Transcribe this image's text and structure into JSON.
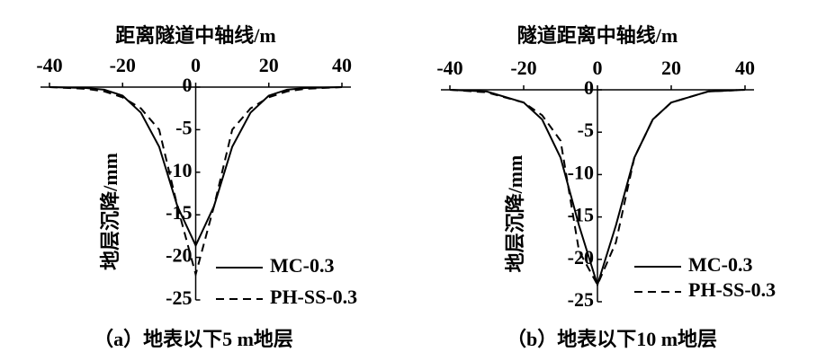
{
  "chart_data": [
    {
      "type": "line",
      "title": "（a）地表以下5 m地层",
      "x_label": "距离隧道中轴线/m",
      "y_label": "地层沉降/mm",
      "xlim": [
        -40,
        40
      ],
      "xticks": [
        -40,
        -20,
        0,
        20,
        40
      ],
      "ylim": [
        -25,
        0
      ],
      "yticks": [
        0,
        -5,
        -10,
        -15,
        -20,
        -25
      ],
      "legend": "lower right",
      "series": [
        {
          "name": "MC-0.3",
          "color": "#000000",
          "dashed": false,
          "x": [
            -40,
            -30,
            -25,
            -20,
            -15,
            -10,
            -5,
            0,
            5,
            10,
            15,
            20,
            25,
            30,
            40
          ],
          "values": [
            0,
            -0.1,
            -0.3,
            -1,
            -3,
            -7,
            -14,
            -18.6,
            -14,
            -7,
            -3,
            -1,
            -0.3,
            -0.1,
            0
          ]
        },
        {
          "name": "PH-SS-0.3",
          "color": "#000000",
          "dashed": true,
          "x": [
            -40,
            -30,
            -25,
            -20,
            -15,
            -10,
            -5,
            0,
            5,
            10,
            15,
            20,
            25,
            30,
            40
          ],
          "values": [
            0,
            -0.2,
            -0.5,
            -1.2,
            -2.5,
            -5,
            -14,
            -22,
            -14,
            -5,
            -2.5,
            -1.2,
            -0.5,
            -0.2,
            0
          ]
        }
      ]
    },
    {
      "type": "line",
      "title": "（b）地表以下10 m地层",
      "x_label": "隧道距离中轴线/m",
      "y_label": "地层沉降/mm",
      "xlim": [
        -40,
        40
      ],
      "xticks": [
        -40,
        -20,
        0,
        20,
        40
      ],
      "ylim": [
        -25,
        0
      ],
      "yticks": [
        0,
        -5,
        -10,
        -15,
        -20,
        -25
      ],
      "legend": "lower right",
      "series": [
        {
          "name": "MC-0.3",
          "color": "#000000",
          "dashed": false,
          "x": [
            -40,
            -30,
            -20,
            -15,
            -10,
            -5,
            0,
            5,
            10,
            15,
            20,
            30,
            40
          ],
          "values": [
            0,
            -0.2,
            -1.5,
            -3.5,
            -8,
            -16,
            -23,
            -16,
            -8,
            -3.5,
            -1.5,
            -0.2,
            0
          ]
        },
        {
          "name": "PH-SS-0.3",
          "color": "#000000",
          "dashed": true,
          "x": [
            -40,
            -30,
            -20,
            -15,
            -10,
            -5,
            0,
            5,
            10,
            15,
            20,
            30,
            40
          ],
          "values": [
            0,
            -0.3,
            -1.5,
            -3,
            -6,
            -19,
            -23,
            -18,
            -8,
            -3.5,
            -1.5,
            -0.2,
            0
          ]
        }
      ]
    }
  ]
}
